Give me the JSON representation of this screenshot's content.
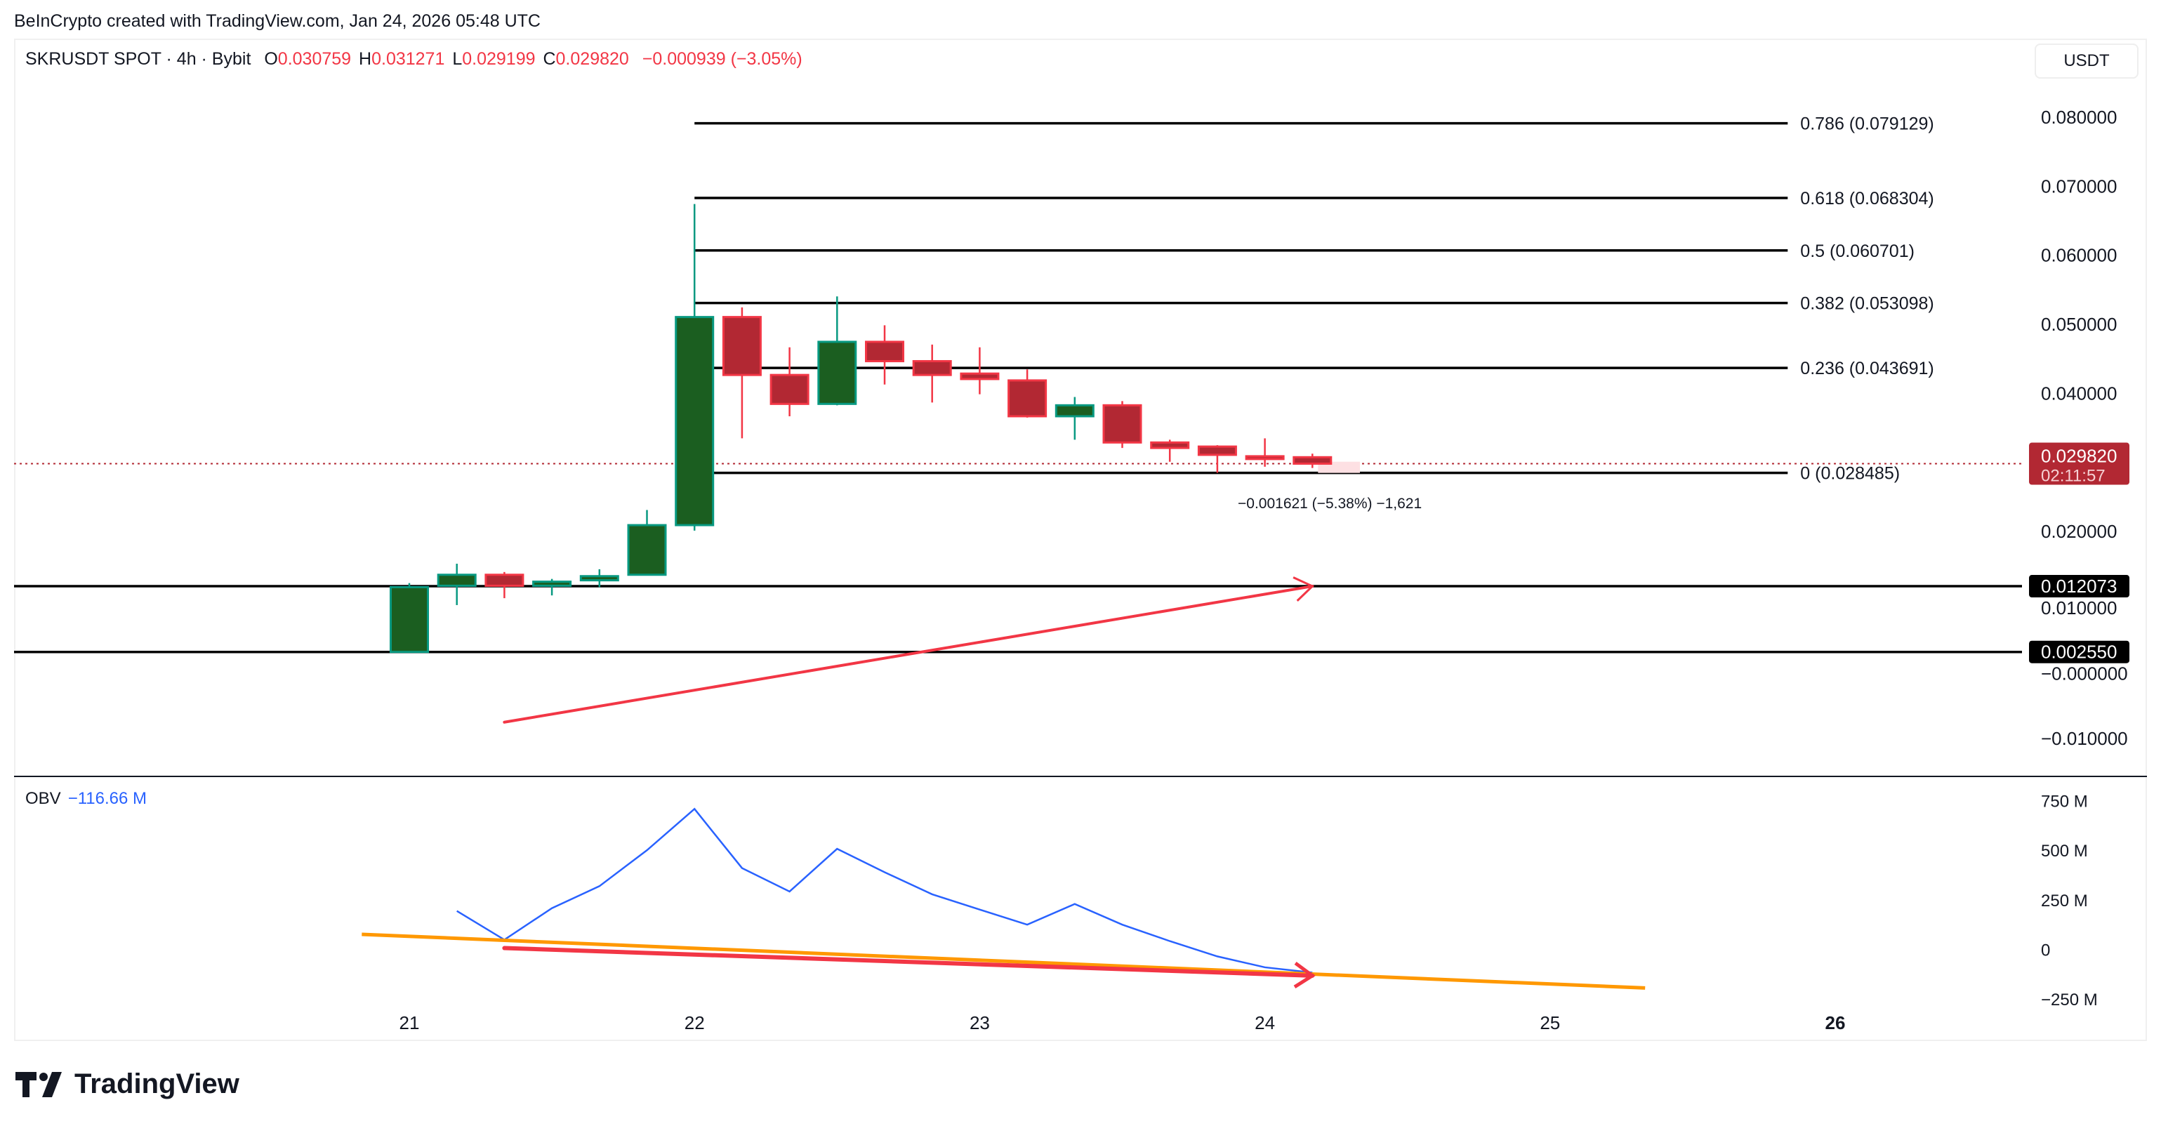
{
  "credit": "BeInCrypto created with TradingView.com, Jan 24, 2026 05:48 UTC",
  "legend": {
    "symbol": "SKRUSDT SPOT · 4h · Bybit",
    "o_label": "O",
    "o": "0.030759",
    "h_label": "H",
    "h": "0.031271",
    "l_label": "L",
    "l": "0.029199",
    "c_label": "C",
    "c": "0.029820",
    "change": "−0.000939 (−3.05%)"
  },
  "currency_button": "USDT",
  "obv_legend": {
    "label": "OBV",
    "value": "−116.66 M"
  },
  "brand": "TradingView",
  "colors": {
    "up_body": "#1b5e20",
    "up_border": "#089981",
    "down_body": "#b22833",
    "down_border": "#f23645",
    "obv": "#2962ff",
    "orange_trend": "#ff9800",
    "red_trend": "#f23645",
    "fib": "#000000"
  },
  "chart_data": [
    {
      "type": "candlestick",
      "title": "SKRUSDT SPOT · 4h · Bybit",
      "y_axis": {
        "unit": "USDT",
        "ticks": [
          "0.080000",
          "0.070000",
          "0.060000",
          "0.050000",
          "0.040000",
          "0.020000",
          "0.010000",
          "−0.000000",
          "−0.010000"
        ],
        "tick_values": [
          0.08,
          0.07,
          0.06,
          0.05,
          0.04,
          0.02,
          0.01,
          0,
          -0.01
        ],
        "range": [
          -0.014,
          0.088
        ]
      },
      "x_axis": {
        "ticks": [
          "21",
          "22",
          "23",
          "24",
          "25",
          "26"
        ],
        "tick_times": [
          "01-21 00:00",
          "01-22 00:00",
          "01-23 00:00",
          "01-24 00:00",
          "01-25 00:00",
          "01-26 00:00"
        ]
      },
      "candles": [
        {
          "t": "01-21 00:00",
          "o": 0.00255,
          "h": 0.01253,
          "l": 0.00255,
          "c": 0.01194
        },
        {
          "t": "01-21 04:00",
          "o": 0.01214,
          "h": 0.01533,
          "l": 0.00934,
          "c": 0.01373
        },
        {
          "t": "01-21 08:00",
          "o": 0.01373,
          "h": 0.01413,
          "l": 0.01034,
          "c": 0.01214
        },
        {
          "t": "01-21 12:00",
          "o": 0.01214,
          "h": 0.01313,
          "l": 0.01074,
          "c": 0.01273
        },
        {
          "t": "01-21 16:00",
          "o": 0.01293,
          "h": 0.01453,
          "l": 0.01194,
          "c": 0.01353
        },
        {
          "t": "01-21 20:00",
          "o": 0.01373,
          "h": 0.02311,
          "l": 0.01373,
          "c": 0.02092
        },
        {
          "t": "01-22 00:00",
          "o": 0.02092,
          "h": 0.06743,
          "l": 0.02012,
          "c": 0.05106
        },
        {
          "t": "01-22 04:00",
          "o": 0.05106,
          "h": 0.05246,
          "l": 0.03349,
          "c": 0.04267
        },
        {
          "t": "01-22 08:00",
          "o": 0.04267,
          "h": 0.04667,
          "l": 0.03669,
          "c": 0.03848
        },
        {
          "t": "01-22 12:00",
          "o": 0.03848,
          "h": 0.05405,
          "l": 0.03828,
          "c": 0.04747
        },
        {
          "t": "01-22 16:00",
          "o": 0.04747,
          "h": 0.04986,
          "l": 0.04128,
          "c": 0.04467
        },
        {
          "t": "01-22 20:00",
          "o": 0.04467,
          "h": 0.04707,
          "l": 0.03868,
          "c": 0.04267
        },
        {
          "t": "01-23 00:00",
          "o": 0.04287,
          "h": 0.04667,
          "l": 0.03988,
          "c": 0.04208
        },
        {
          "t": "01-23 04:00",
          "o": 0.04188,
          "h": 0.04347,
          "l": 0.03649,
          "c": 0.03669
        },
        {
          "t": "01-23 08:00",
          "o": 0.03669,
          "h": 0.03948,
          "l": 0.03329,
          "c": 0.03828
        },
        {
          "t": "01-23 12:00",
          "o": 0.03828,
          "h": 0.03888,
          "l": 0.0321,
          "c": 0.03289
        },
        {
          "t": "01-23 16:00",
          "o": 0.03289,
          "h": 0.03329,
          "l": 0.0301,
          "c": 0.0321
        },
        {
          "t": "01-23 20:00",
          "o": 0.0323,
          "h": 0.0325,
          "l": 0.0285,
          "c": 0.0311
        },
        {
          "t": "01-24 00:00",
          "o": 0.0309,
          "h": 0.03349,
          "l": 0.02938,
          "c": 0.0305
        },
        {
          "t": "01-24 04:00",
          "o": 0.030759,
          "h": 0.031271,
          "l": 0.029199,
          "c": 0.02982
        }
      ],
      "fib_retracement": {
        "start": "01-22 00:00",
        "end": "01-25 20:00",
        "levels": [
          {
            "level": 0.786,
            "price": 0.079129,
            "label": "0.786 (0.079129)"
          },
          {
            "level": 0.618,
            "price": 0.068304,
            "label": "0.618 (0.068304)"
          },
          {
            "level": 0.5,
            "price": 0.060701,
            "label": "0.5 (0.060701)"
          },
          {
            "level": 0.382,
            "price": 0.053098,
            "label": "0.382 (0.053098)"
          },
          {
            "level": 0.236,
            "price": 0.043691,
            "label": "0.236 (0.043691)"
          },
          {
            "level": 0,
            "price": 0.028485,
            "label": "0 (0.028485)"
          }
        ]
      },
      "horizontal_lines": [
        {
          "price": 0.012073,
          "label": "0.012073"
        },
        {
          "price": 0.00255,
          "label": "0.002550"
        }
      ],
      "last_price": {
        "price": 0.02982,
        "label": "0.029820",
        "countdown": "02:11:57"
      },
      "measure": {
        "from": 0.030106,
        "to": 0.028485,
        "start": "01-24 04:00",
        "end": "01-24 08:00",
        "label": "−0.001621 (−5.38%) −1,621"
      },
      "trend_arrow": {
        "from": {
          "t": "01-21 08:00",
          "price": -0.00762
        },
        "to": {
          "t": "01-24 04:00",
          "price": 0.012073
        }
      }
    },
    {
      "type": "line",
      "title": "OBV",
      "y_axis": {
        "ticks": [
          "750 M",
          "500 M",
          "250 M",
          "0",
          "−250 M"
        ],
        "tick_values": [
          750,
          500,
          250,
          0,
          -250
        ],
        "unit": "M"
      },
      "series": [
        {
          "name": "OBV",
          "points": [
            {
              "t": "01-21 04:00",
              "v": 194
            },
            {
              "t": "01-21 08:00",
              "v": 49
            },
            {
              "t": "01-21 12:00",
              "v": 208
            },
            {
              "t": "01-21 16:00",
              "v": 319
            },
            {
              "t": "01-21 20:00",
              "v": 500
            },
            {
              "t": "01-22 00:00",
              "v": 708
            },
            {
              "t": "01-22 04:00",
              "v": 410
            },
            {
              "t": "01-22 08:00",
              "v": 292
            },
            {
              "t": "01-22 12:00",
              "v": 507
            },
            {
              "t": "01-22 16:00",
              "v": 389
            },
            {
              "t": "01-22 20:00",
              "v": 278
            },
            {
              "t": "01-23 00:00",
              "v": 201
            },
            {
              "t": "01-23 04:00",
              "v": 125
            },
            {
              "t": "01-23 08:00",
              "v": 229
            },
            {
              "t": "01-23 12:00",
              "v": 125
            },
            {
              "t": "01-23 16:00",
              "v": 42
            },
            {
              "t": "01-23 20:00",
              "v": -35
            },
            {
              "t": "01-24 00:00",
              "v": -90
            },
            {
              "t": "01-24 04:00",
              "v": -116.66
            }
          ]
        }
      ],
      "trendlines": [
        {
          "color": "orange",
          "from": {
            "t": "01-20 20:00",
            "v": 76
          },
          "to": {
            "t": "01-25 08:00",
            "v": -194
          }
        },
        {
          "color": "red",
          "arrow": true,
          "from": {
            "t": "01-21 08:00",
            "v": 7
          },
          "to": {
            "t": "01-24 04:00",
            "v": -132
          }
        }
      ]
    }
  ]
}
